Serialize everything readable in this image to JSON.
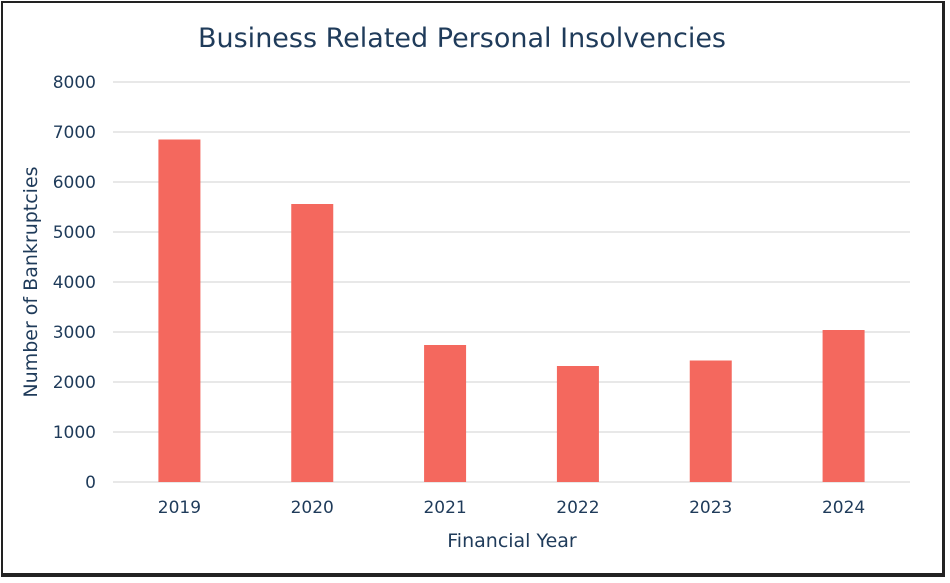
{
  "chart_data": {
    "type": "bar",
    "title": "Business Related Personal Insolvencies",
    "xlabel": "Financial Year",
    "ylabel": "Number of Bankruptcies",
    "categories": [
      "2019",
      "2020",
      "2021",
      "2022",
      "2023",
      "2024"
    ],
    "values": [
      6850,
      5560,
      2740,
      2320,
      2430,
      3040
    ],
    "ylim": [
      0,
      8000
    ],
    "yticks": [
      "0",
      "1000",
      "2000",
      "3000",
      "4000",
      "5000",
      "6000",
      "7000",
      "8000"
    ],
    "grid": true,
    "legend": "none",
    "bar_color": "#f4685e",
    "text_color": "#1f3b5a",
    "grid_color": "#d9d9d9"
  }
}
